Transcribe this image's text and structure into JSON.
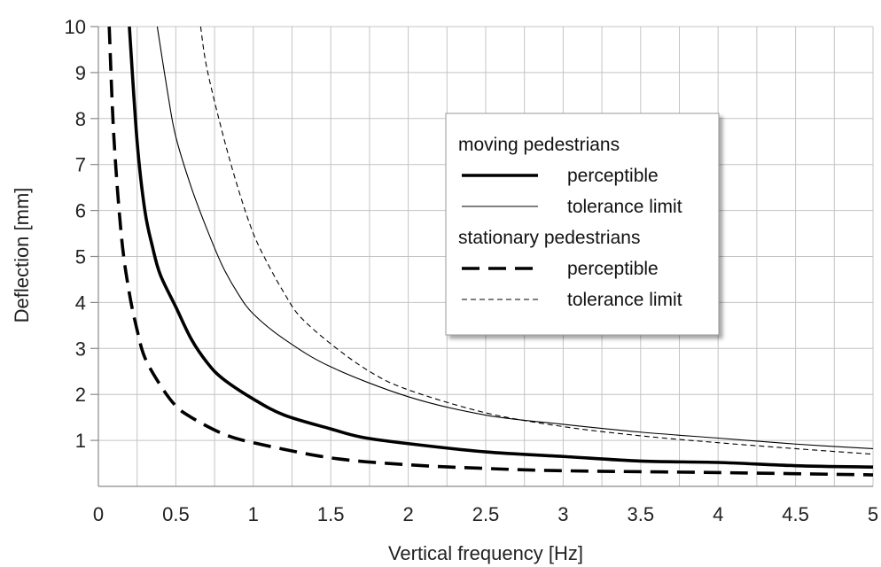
{
  "chart_data": {
    "type": "line",
    "title": "",
    "xlabel": "Vertical frequency [Hz]",
    "ylabel": "Deflection [mm]",
    "xlim": [
      0,
      5
    ],
    "ylim": [
      0,
      10
    ],
    "x_ticks": [
      0,
      0.5,
      1,
      1.5,
      2,
      2.5,
      3,
      3.5,
      4,
      4.5,
      5
    ],
    "x_tick_labels": [
      "0",
      "0.5",
      "1",
      "1.5",
      "2",
      "2.5",
      "3",
      "3.5",
      "4",
      "4.5",
      "5"
    ],
    "y_ticks": [
      1,
      2,
      3,
      4,
      5,
      6,
      7,
      8,
      9,
      10
    ],
    "y_tick_labels": [
      "1",
      "2",
      "3",
      "4",
      "5",
      "6",
      "7",
      "8",
      "9",
      "10"
    ],
    "x_minor_step": 0.25,
    "grid": true,
    "legend": {
      "placement": "upper-right",
      "groups": [
        {
          "heading": "moving pedestrians",
          "entries": [
            {
              "label": "perceptible",
              "series": "moving-perceptible"
            },
            {
              "label": "tolerance limit",
              "series": "moving-tolerance"
            }
          ]
        },
        {
          "heading": "stationary pedestrians",
          "entries": [
            {
              "label": "perceptible",
              "series": "stationary-perceptible"
            },
            {
              "label": "tolerance limit",
              "series": "stationary-tolerance"
            }
          ]
        }
      ]
    },
    "series": [
      {
        "id": "moving-perceptible",
        "group": "moving pedestrians",
        "name": "perceptible",
        "style": "solid-thick",
        "color": "#000000",
        "points": [
          [
            0.2,
            10
          ],
          [
            0.25,
            7.5
          ],
          [
            0.3,
            6.0
          ],
          [
            0.35,
            5.2
          ],
          [
            0.4,
            4.6
          ],
          [
            0.5,
            3.9
          ],
          [
            0.6,
            3.2
          ],
          [
            0.7,
            2.7
          ],
          [
            0.8,
            2.35
          ],
          [
            1.0,
            1.9
          ],
          [
            1.2,
            1.55
          ],
          [
            1.5,
            1.25
          ],
          [
            1.7,
            1.07
          ],
          [
            2.0,
            0.93
          ],
          [
            2.5,
            0.75
          ],
          [
            3.0,
            0.65
          ],
          [
            3.5,
            0.55
          ],
          [
            4.0,
            0.52
          ],
          [
            4.5,
            0.45
          ],
          [
            5.0,
            0.42
          ]
        ]
      },
      {
        "id": "moving-tolerance",
        "group": "moving pedestrians",
        "name": "tolerance limit",
        "style": "solid-thin",
        "color": "#000000",
        "points": [
          [
            0.38,
            10
          ],
          [
            0.45,
            8.5
          ],
          [
            0.5,
            7.6
          ],
          [
            0.6,
            6.5
          ],
          [
            0.7,
            5.6
          ],
          [
            0.8,
            4.8
          ],
          [
            0.9,
            4.2
          ],
          [
            1.0,
            3.75
          ],
          [
            1.2,
            3.2
          ],
          [
            1.5,
            2.6
          ],
          [
            2.0,
            1.95
          ],
          [
            2.5,
            1.55
          ],
          [
            3.0,
            1.35
          ],
          [
            3.5,
            1.18
          ],
          [
            4.0,
            1.05
          ],
          [
            4.5,
            0.92
          ],
          [
            5.0,
            0.82
          ]
        ]
      },
      {
        "id": "stationary-perceptible",
        "group": "stationary pedestrians",
        "name": "perceptible",
        "style": "dashed-thick",
        "color": "#000000",
        "points": [
          [
            0.07,
            10
          ],
          [
            0.1,
            7.6
          ],
          [
            0.15,
            5.4
          ],
          [
            0.2,
            4.2
          ],
          [
            0.25,
            3.4
          ],
          [
            0.3,
            2.8
          ],
          [
            0.4,
            2.2
          ],
          [
            0.5,
            1.75
          ],
          [
            0.6,
            1.5
          ],
          [
            0.8,
            1.15
          ],
          [
            1.0,
            0.95
          ],
          [
            1.5,
            0.62
          ],
          [
            2.0,
            0.47
          ],
          [
            2.5,
            0.39
          ],
          [
            3.0,
            0.34
          ],
          [
            4.0,
            0.3
          ],
          [
            5.0,
            0.25
          ]
        ]
      },
      {
        "id": "stationary-tolerance",
        "group": "stationary pedestrians",
        "name": "tolerance limit",
        "style": "dashed-thin",
        "color": "#000000",
        "points": [
          [
            0.66,
            10
          ],
          [
            0.7,
            9.1
          ],
          [
            0.8,
            7.7
          ],
          [
            0.9,
            6.5
          ],
          [
            1.0,
            5.5
          ],
          [
            1.1,
            4.8
          ],
          [
            1.2,
            4.2
          ],
          [
            1.3,
            3.7
          ],
          [
            1.5,
            3.1
          ],
          [
            1.75,
            2.5
          ],
          [
            2.0,
            2.1
          ],
          [
            2.5,
            1.6
          ],
          [
            3.0,
            1.3
          ],
          [
            3.5,
            1.1
          ],
          [
            4.0,
            0.95
          ],
          [
            4.5,
            0.82
          ],
          [
            5.0,
            0.7
          ]
        ]
      }
    ]
  }
}
